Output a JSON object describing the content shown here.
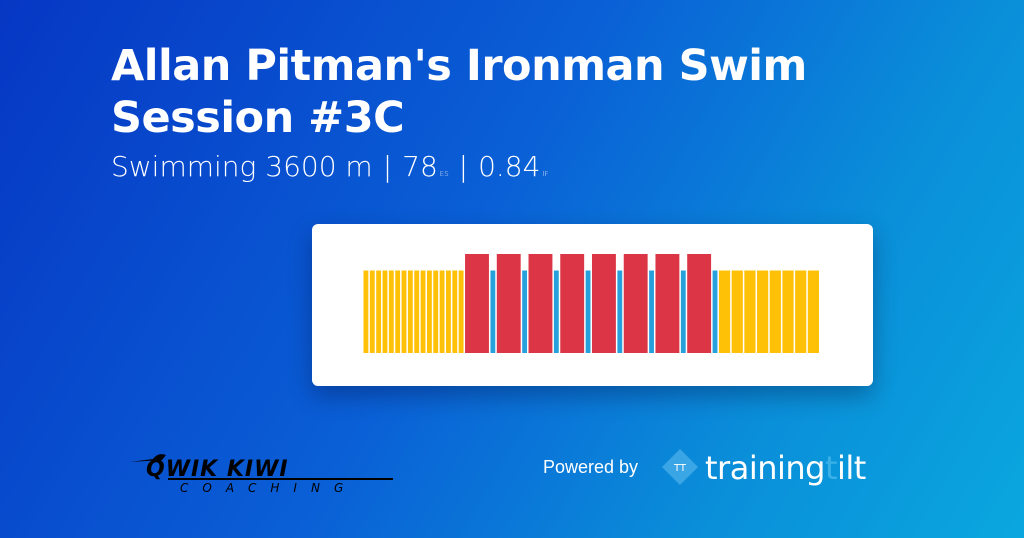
{
  "header": {
    "title": "Allan Pitman's Ironman Swim Session #3C",
    "sport": "Swimming",
    "distance": "3600 m",
    "es_value": "78",
    "es_unit": "ES",
    "if_value": "0.84",
    "if_unit": "IF"
  },
  "chart_data": {
    "type": "bar",
    "x_unit": "m",
    "colors": {
      "easy": "#ffc107",
      "hard": "#dc3545",
      "rest": "#27a1dc"
    },
    "segments": [
      {
        "zone": "easy",
        "distance": 50,
        "intensity": 0.7,
        "repeat": 16
      },
      {
        "zone": "hard",
        "distance": 200,
        "intensity": 0.84,
        "repeat": 1
      },
      {
        "zone": "rest",
        "distance": 50,
        "intensity": 0.7,
        "repeat": 1
      },
      {
        "zone": "hard",
        "distance": 200,
        "intensity": 0.84,
        "repeat": 1
      },
      {
        "zone": "rest",
        "distance": 50,
        "intensity": 0.7,
        "repeat": 1
      },
      {
        "zone": "hard",
        "distance": 200,
        "intensity": 0.84,
        "repeat": 1
      },
      {
        "zone": "rest",
        "distance": 50,
        "intensity": 0.7,
        "repeat": 1
      },
      {
        "zone": "hard",
        "distance": 200,
        "intensity": 0.84,
        "repeat": 1
      },
      {
        "zone": "rest",
        "distance": 50,
        "intensity": 0.7,
        "repeat": 1
      },
      {
        "zone": "hard",
        "distance": 200,
        "intensity": 0.84,
        "repeat": 1
      },
      {
        "zone": "rest",
        "distance": 50,
        "intensity": 0.7,
        "repeat": 1
      },
      {
        "zone": "hard",
        "distance": 200,
        "intensity": 0.84,
        "repeat": 1
      },
      {
        "zone": "rest",
        "distance": 50,
        "intensity": 0.7,
        "repeat": 1
      },
      {
        "zone": "hard",
        "distance": 200,
        "intensity": 0.84,
        "repeat": 1
      },
      {
        "zone": "rest",
        "distance": 50,
        "intensity": 0.7,
        "repeat": 1
      },
      {
        "zone": "hard",
        "distance": 200,
        "intensity": 0.84,
        "repeat": 1
      },
      {
        "zone": "rest",
        "distance": 50,
        "intensity": 0.7,
        "repeat": 1
      },
      {
        "zone": "easy",
        "distance": 100,
        "intensity": 0.7,
        "repeat": 8
      }
    ],
    "grid": false
  },
  "footer": {
    "coach_logo": "QWIK KIWI COACHING",
    "powered_by": "Powered by",
    "brand_logo": "trainingtilt",
    "brand_mark": "TT"
  },
  "colors": {
    "accent": "#0a5fd6"
  }
}
